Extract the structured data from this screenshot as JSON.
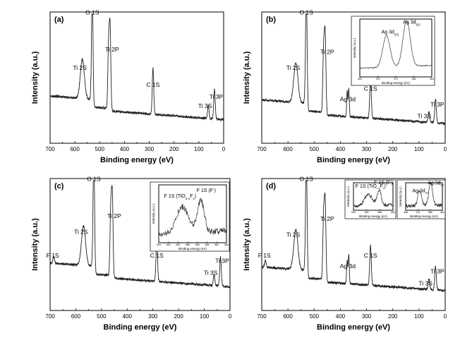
{
  "chart_data": [
    {
      "panel": "(a)",
      "type": "line",
      "xlabel": "Binding energy (eV)",
      "ylabel": "Intensity (a.u.)",
      "xlim": [
        700,
        0
      ],
      "xticks": [
        700,
        600,
        500,
        400,
        300,
        200,
        100,
        0
      ],
      "baseline": 0.18,
      "peaks": [
        {
          "be": 570,
          "h": 0.3,
          "w": 8
        },
        {
          "be": 530,
          "h": 0.92,
          "w": 3
        },
        {
          "be": 464,
          "h": 0.48,
          "w": 3
        },
        {
          "be": 458,
          "h": 0.62,
          "w": 3
        },
        {
          "be": 285,
          "h": 0.35,
          "w": 3
        },
        {
          "be": 62,
          "h": 0.1,
          "w": 3
        },
        {
          "be": 37,
          "h": 0.22,
          "w": 3
        }
      ],
      "labels": [
        {
          "text": "O 1S",
          "be": 530,
          "y": 0.98
        },
        {
          "text": "Ti 2S",
          "be": 580,
          "y": 0.56
        },
        {
          "text": "Ti 2P",
          "be": 450,
          "y": 0.7
        },
        {
          "text": "C 1S",
          "be": 285,
          "y": 0.43
        },
        {
          "text": "Ti 3S",
          "be": 75,
          "y": 0.27
        },
        {
          "text": "Ti 3P",
          "be": 30,
          "y": 0.34
        }
      ]
    },
    {
      "panel": "(b)",
      "type": "line",
      "xlabel": "Binding energy (eV)",
      "ylabel": "Intensity (a.u.)",
      "xlim": [
        700,
        0
      ],
      "xticks": [
        700,
        600,
        500,
        400,
        300,
        200,
        100,
        0
      ],
      "baseline": 0.15,
      "peaks": [
        {
          "be": 570,
          "h": 0.3,
          "w": 8
        },
        {
          "be": 530,
          "h": 0.92,
          "w": 3
        },
        {
          "be": 464,
          "h": 0.45,
          "w": 3
        },
        {
          "be": 458,
          "h": 0.6,
          "w": 3
        },
        {
          "be": 374,
          "h": 0.19,
          "w": 2
        },
        {
          "be": 368,
          "h": 0.22,
          "w": 2
        },
        {
          "be": 285,
          "h": 0.3,
          "w": 3
        },
        {
          "be": 62,
          "h": 0.08,
          "w": 3
        },
        {
          "be": 37,
          "h": 0.18,
          "w": 3
        }
      ],
      "labels": [
        {
          "text": "O 1S",
          "be": 530,
          "y": 0.98
        },
        {
          "text": "Ti 2S",
          "be": 580,
          "y": 0.56
        },
        {
          "text": "Ti 2P",
          "be": 450,
          "y": 0.68
        },
        {
          "text": "Ag 3d",
          "be": 372,
          "y": 0.32
        },
        {
          "text": "C 1S",
          "be": 285,
          "y": 0.4
        },
        {
          "text": "Ti 3P",
          "be": 30,
          "y": 0.28
        },
        {
          "text": "Ti 3S",
          "be": 80,
          "y": 0.19
        }
      ],
      "insets": [
        {
          "xlabel": "Binding energy (eV)",
          "ylabel": "Intensity (a.u.)",
          "xticks": [
            "380",
            "376",
            "372",
            "368",
            "364"
          ],
          "peaks": [
            {
              "x": 0.37,
              "h": 0.55,
              "w": 0.05
            },
            {
              "x": 0.65,
              "h": 0.8,
              "w": 0.05
            }
          ],
          "labels": [
            {
              "text": "Ag 3d",
              "sub": "3/2",
              "x": 0.3,
              "y": 0.75
            },
            {
              "text": "Ag 3d",
              "sub": "5/2",
              "x": 0.6,
              "y": 0.92
            }
          ]
        }
      ]
    },
    {
      "panel": "(c)",
      "type": "line",
      "xlabel": "Binding energy (eV)",
      "ylabel": "Intensity (a.u.)",
      "xlim": [
        700,
        0
      ],
      "xticks": [
        700,
        600,
        500,
        400,
        300,
        200,
        100,
        0
      ],
      "baseline": 0.18,
      "peaks": [
        {
          "be": 686,
          "h": 0.05,
          "w": 3
        },
        {
          "be": 570,
          "h": 0.3,
          "w": 8
        },
        {
          "be": 530,
          "h": 0.92,
          "w": 3
        },
        {
          "be": 464,
          "h": 0.48,
          "w": 3
        },
        {
          "be": 458,
          "h": 0.62,
          "w": 3
        },
        {
          "be": 285,
          "h": 0.32,
          "w": 3
        },
        {
          "be": 62,
          "h": 0.08,
          "w": 3
        },
        {
          "be": 37,
          "h": 0.22,
          "w": 3
        }
      ],
      "labels": [
        {
          "text": "O 1S",
          "be": 530,
          "y": 0.98
        },
        {
          "text": "F 1S",
          "be": 690,
          "y": 0.4
        },
        {
          "text": "Ti 2S",
          "be": 580,
          "y": 0.58
        },
        {
          "text": "Ti 2P",
          "be": 450,
          "y": 0.7
        },
        {
          "text": "C 1S",
          "be": 285,
          "y": 0.4
        },
        {
          "text": "Ti 3P",
          "be": 30,
          "y": 0.36
        },
        {
          "text": "Ti 3S",
          "be": 75,
          "y": 0.27
        }
      ],
      "insets": [
        {
          "xlabel": "Binding energy (eV)",
          "ylabel": "Intensity (a.u.)",
          "xticks": [
            "694",
            "692",
            "690",
            "688",
            "686",
            "684",
            "682",
            "680"
          ],
          "peaks": [
            {
              "x": 0.35,
              "h": 0.45,
              "w": 0.09
            },
            {
              "x": 0.62,
              "h": 0.55,
              "w": 0.05
            }
          ],
          "labels": [
            {
              "text": "F 1S (TiO",
              "sub": "2-x",
              "extra": "F",
              "extrasub": "x",
              "after": ")",
              "x": 0.08,
              "y": 0.78
            },
            {
              "text": "F 1S (F",
              "sup": "-",
              "after": ")",
              "x": 0.56,
              "y": 0.88
            }
          ]
        }
      ]
    },
    {
      "panel": "(d)",
      "type": "line",
      "xlabel": "Binding energy (eV)",
      "ylabel": "Intensity (a.u.)",
      "xlim": [
        700,
        0
      ],
      "xticks": [
        700,
        600,
        500,
        400,
        300,
        200,
        100,
        0
      ],
      "baseline": 0.15,
      "peaks": [
        {
          "be": 686,
          "h": 0.05,
          "w": 3
        },
        {
          "be": 570,
          "h": 0.3,
          "w": 8
        },
        {
          "be": 530,
          "h": 0.92,
          "w": 3
        },
        {
          "be": 464,
          "h": 0.45,
          "w": 3
        },
        {
          "be": 458,
          "h": 0.6,
          "w": 3
        },
        {
          "be": 374,
          "h": 0.18,
          "w": 2
        },
        {
          "be": 368,
          "h": 0.22,
          "w": 2
        },
        {
          "be": 285,
          "h": 0.3,
          "w": 3
        },
        {
          "be": 62,
          "h": 0.08,
          "w": 3
        },
        {
          "be": 37,
          "h": 0.18,
          "w": 3
        }
      ],
      "labels": [
        {
          "text": "O 1S",
          "be": 530,
          "y": 0.98
        },
        {
          "text": "F 1S",
          "be": 690,
          "y": 0.4
        },
        {
          "text": "Ti 2S",
          "be": 580,
          "y": 0.56
        },
        {
          "text": "Ti 2P",
          "be": 450,
          "y": 0.68
        },
        {
          "text": "Ag 3d",
          "be": 372,
          "y": 0.32
        },
        {
          "text": "C 1S",
          "be": 285,
          "y": 0.4
        },
        {
          "text": "Ti 3P",
          "be": 30,
          "y": 0.28
        },
        {
          "text": "Ti 3S",
          "be": 75,
          "y": 0.19
        }
      ],
      "insets": [
        {
          "xlabel": "Binding energy (eV)",
          "ylabel": "Intensity (a.u.)",
          "xticks": [
            "694",
            "690",
            "686",
            "682"
          ],
          "peaks": [
            {
              "x": 0.38,
              "h": 0.4,
              "w": 0.1
            },
            {
              "x": 0.65,
              "h": 0.55,
              "w": 0.05
            }
          ],
          "labels": [
            {
              "text": "F 1S (TiO",
              "sub": "2-x",
              "extra": "F",
              "extrasub": "x",
              "after": ")",
              "x": 0.05,
              "y": 0.82
            },
            {
              "text": "F 1S (F",
              "sup": "-",
              "after": ")",
              "x": 0.52,
              "y": 0.95
            }
          ]
        },
        {
          "xlabel": "Binding energy (eV)",
          "ylabel": "Intensity (a.u.)",
          "xticks": [
            "380",
            "374",
            "368",
            "362"
          ],
          "peaks": [
            {
              "x": 0.38,
              "h": 0.55,
              "w": 0.05
            },
            {
              "x": 0.68,
              "h": 0.82,
              "w": 0.05
            }
          ],
          "labels": [
            {
              "text": "Ag 3d",
              "sub": "3/2",
              "x": 0.18,
              "y": 0.66
            },
            {
              "text": "Ag 3d",
              "sub": "5/2",
              "x": 0.6,
              "y": 0.94
            }
          ]
        }
      ]
    }
  ]
}
